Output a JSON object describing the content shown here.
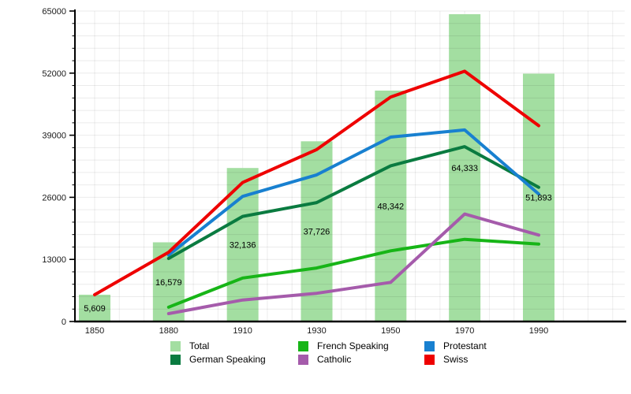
{
  "chart": {
    "background": "#ffffff",
    "axis_color": "#000000",
    "grid_color_vertical": "#ededed",
    "grid_color_horizontal": "rgba(0,0,0,0.08)",
    "tick_label_color": "#1a1a1a"
  },
  "chart_data": {
    "type": "bar",
    "subtype": "bar-with-lines-combo",
    "title": "",
    "xlabel": "",
    "ylabel": "",
    "categories": [
      "1850",
      "1880",
      "1910",
      "1930",
      "1950",
      "1970",
      "1990"
    ],
    "ylim": [
      0,
      65000
    ],
    "y_major_step": 13000,
    "y_minor_step": 2600,
    "y_tick_labels": [
      "0",
      "13000",
      "26000",
      "39000",
      "52000",
      "65000"
    ],
    "grid": "on",
    "legend_position": "bottom",
    "bars": {
      "name": "Total",
      "color": "#a3dea1",
      "values": [
        5609,
        16579,
        32136,
        37726,
        48342,
        64333,
        51893
      ],
      "value_labels": [
        "5,609",
        "16,579",
        "32,136",
        "37,726",
        "48,342",
        "64,333",
        "51,893"
      ]
    },
    "series": [
      {
        "name": "French Speaking",
        "color": "#17b517",
        "values": [
          null,
          3000,
          9100,
          11200,
          14800,
          17200,
          16200
        ]
      },
      {
        "name": "Catholic",
        "color": "#a55bab",
        "values": [
          null,
          1650,
          4500,
          5900,
          8200,
          22500,
          18100
        ]
      },
      {
        "name": "German Speaking",
        "color": "#0a7b40",
        "values": [
          null,
          13200,
          22000,
          24900,
          32600,
          36600,
          28100
        ]
      },
      {
        "name": "Protestant",
        "color": "#1880d0",
        "values": [
          null,
          13900,
          26200,
          30700,
          38600,
          40100,
          26700
        ]
      },
      {
        "name": "Swiss",
        "color": "#ee0000",
        "values": [
          5609,
          14500,
          29100,
          36000,
          47000,
          52400,
          41000
        ]
      }
    ],
    "legend": [
      {
        "label": "Total",
        "color": "#a3dea1"
      },
      {
        "label": "German Speaking",
        "color": "#0a7b40"
      },
      {
        "label": "French Speaking",
        "color": "#17b517"
      },
      {
        "label": "Catholic",
        "color": "#a55bab"
      },
      {
        "label": "Protestant",
        "color": "#1880d0"
      },
      {
        "label": "Swiss",
        "color": "#ee0000"
      }
    ]
  }
}
